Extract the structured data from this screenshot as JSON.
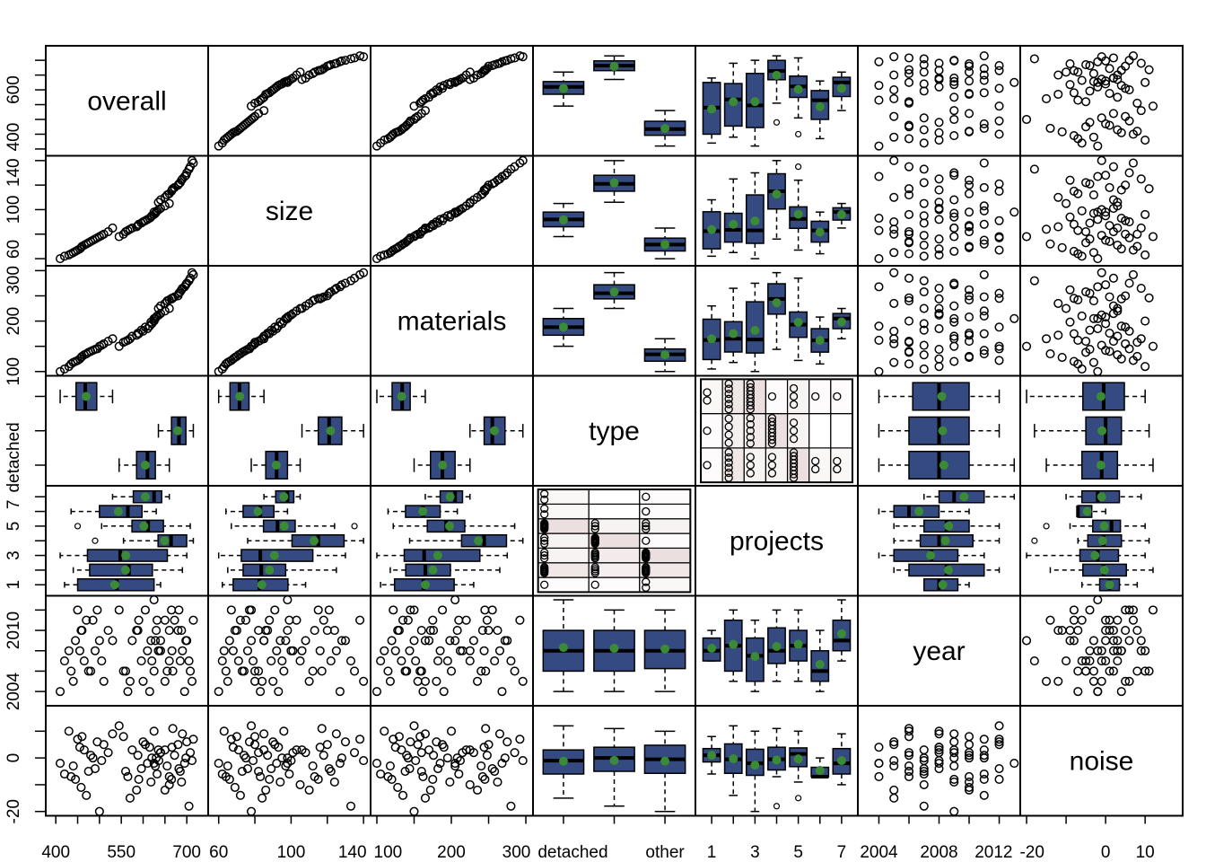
{
  "chart_data": {
    "type": "scatter",
    "kind": "pairs-matrix",
    "variables": [
      {
        "name": "overall",
        "kind": "numeric",
        "lim": [
          377,
          749
        ],
        "ticks": [
          400,
          450,
          500,
          550,
          600,
          650,
          700
        ],
        "bottom_labels": [
          {
            "at": 400,
            "text": "400"
          },
          {
            "at": 550,
            "text": "550"
          },
          {
            "at": 700,
            "text": "700"
          }
        ],
        "left_labels": [
          {
            "at": 400,
            "text": "400"
          },
          {
            "at": 600,
            "text": "600"
          }
        ]
      },
      {
        "name": "size",
        "kind": "numeric",
        "lim": [
          54.2,
          143.9
        ],
        "ticks": [
          60,
          80,
          100,
          120,
          140
        ],
        "bottom_labels": [
          {
            "at": 60,
            "text": "60"
          },
          {
            "at": 100,
            "text": "100"
          },
          {
            "at": 140,
            "text": "140"
          }
        ],
        "left_labels": [
          {
            "at": 60,
            "text": "60"
          },
          {
            "at": 100,
            "text": "100"
          },
          {
            "at": 140,
            "text": "140"
          }
        ]
      },
      {
        "name": "materials",
        "kind": "numeric",
        "lim": [
          91.6,
          309.6
        ],
        "ticks": [
          100,
          150,
          200,
          250,
          300
        ],
        "bottom_labels": [
          {
            "at": 100,
            "text": "100"
          },
          {
            "at": 200,
            "text": "200"
          },
          {
            "at": 300,
            "text": "300"
          }
        ],
        "left_labels": [
          {
            "at": 100,
            "text": "100"
          },
          {
            "at": 200,
            "text": "200"
          },
          {
            "at": 300,
            "text": "300"
          }
        ]
      },
      {
        "name": "type",
        "kind": "categorical",
        "lim": [
          0.4,
          3.6
        ],
        "levels": [
          1,
          2,
          3
        ],
        "ticks": [
          1,
          2,
          3
        ],
        "bottom_labels": [
          {
            "at": 1,
            "text": "detached"
          },
          {
            "at": 3,
            "text": "other"
          }
        ],
        "left_labels": [
          {
            "at": 1,
            "text": "detached"
          }
        ]
      },
      {
        "name": "projects",
        "kind": "categorical",
        "lim": [
          0.25,
          7.75
        ],
        "levels": [
          1,
          2,
          3,
          4,
          5,
          6,
          7
        ],
        "ticks": [
          1,
          2,
          3,
          4,
          5,
          6,
          7
        ],
        "bottom_labels": [
          {
            "at": 1,
            "text": "1"
          },
          {
            "at": 3,
            "text": "3"
          },
          {
            "at": 5,
            "text": "5"
          },
          {
            "at": 7,
            "text": "7"
          }
        ],
        "left_labels": [
          {
            "at": 1,
            "text": "1"
          },
          {
            "at": 3,
            "text": "3"
          },
          {
            "at": 5,
            "text": "5"
          },
          {
            "at": 7,
            "text": "7"
          }
        ]
      },
      {
        "name": "year",
        "kind": "numeric",
        "lim": [
          2002.6,
          2013.4
        ],
        "ticks": [
          2004,
          2006,
          2008,
          2010,
          2012
        ],
        "bottom_labels": [
          {
            "at": 2004,
            "text": "2004"
          },
          {
            "at": 2008,
            "text": "2008"
          },
          {
            "at": 2012,
            "text": "2012"
          }
        ],
        "left_labels": [
          {
            "at": 2004,
            "text": "2004"
          },
          {
            "at": 2010,
            "text": "2010"
          }
        ]
      },
      {
        "name": "noise",
        "kind": "numeric",
        "lim": [
          -21.6,
          19.5
        ],
        "ticks": [
          -20,
          -10,
          0,
          10
        ],
        "bottom_labels": [
          {
            "at": -20,
            "text": "-20"
          },
          {
            "at": 0,
            "text": "0"
          },
          {
            "at": 10,
            "text": "10"
          }
        ],
        "left_labels": [
          {
            "at": -20,
            "text": "-20"
          },
          {
            "at": 0,
            "text": "0"
          }
        ]
      }
    ],
    "observations": [
      [
        560,
        82,
        160,
        1,
        2,
        2006,
        -5
      ],
      [
        575,
        85,
        170,
        1,
        2,
        2009,
        3
      ],
      [
        590,
        88,
        175,
        1,
        2,
        2011,
        -8
      ],
      [
        600,
        90,
        180,
        1,
        2,
        2005,
        6
      ],
      [
        610,
        92,
        185,
        1,
        2,
        2008,
        -2
      ],
      [
        545,
        78,
        150,
        1,
        2,
        2012,
        12
      ],
      [
        620,
        95,
        195,
        1,
        1,
        2007,
        0
      ],
      [
        585,
        86,
        172,
        1,
        3,
        2010,
        -12
      ],
      [
        615,
        93,
        190,
        1,
        3,
        2004,
        4
      ],
      [
        628,
        97,
        205,
        1,
        3,
        2009,
        -3
      ],
      [
        555,
        80,
        158,
        1,
        4,
        2006,
        8
      ],
      [
        632,
        99,
        210,
        1,
        4,
        2011,
        -6
      ],
      [
        640,
        101,
        215,
        1,
        4,
        2008,
        2
      ],
      [
        570,
        84,
        165,
        1,
        5,
        2005,
        -15
      ],
      [
        588,
        87,
        176,
        1,
        5,
        2010,
        1
      ],
      [
        596,
        89,
        182,
        1,
        5,
        2007,
        -4
      ],
      [
        605,
        91,
        188,
        1,
        5,
        2012,
        5
      ],
      [
        618,
        94,
        198,
        1,
        5,
        2009,
        -9
      ],
      [
        625,
        96,
        200,
        1,
        5,
        2006,
        10
      ],
      [
        636,
        100,
        212,
        1,
        5,
        2008,
        -1
      ],
      [
        650,
        103,
        220,
        1,
        5,
        2011,
        3
      ],
      [
        565,
        83,
        162,
        1,
        6,
        2004,
        -7
      ],
      [
        630,
        98,
        208,
        1,
        6,
        2010,
        0
      ],
      [
        660,
        105,
        225,
        1,
        7,
        2007,
        -10
      ],
      [
        640,
        108,
        230,
        2,
        1,
        2009,
        2
      ],
      [
        655,
        112,
        240,
        2,
        2,
        2006,
        -3
      ],
      [
        680,
        120,
        250,
        2,
        2,
        2010,
        5
      ],
      [
        665,
        115,
        245,
        2,
        2,
        2012,
        -8
      ],
      [
        690,
        125,
        265,
        2,
        2,
        2008,
        9
      ],
      [
        650,
        110,
        235,
        2,
        3,
        2005,
        -12
      ],
      [
        672,
        118,
        248,
        2,
        3,
        2011,
        1
      ],
      [
        685,
        122,
        258,
        2,
        3,
        2007,
        -5
      ],
      [
        700,
        130,
        275,
        2,
        3,
        2009,
        6
      ],
      [
        695,
        127,
        268,
        2,
        3,
        2004,
        -2
      ],
      [
        635,
        106,
        225,
        2,
        4,
        2008,
        3
      ],
      [
        660,
        113,
        242,
        2,
        4,
        2010,
        -7
      ],
      [
        668,
        117,
        246,
        2,
        4,
        2006,
        11
      ],
      [
        682,
        121,
        255,
        2,
        4,
        2012,
        -4
      ],
      [
        698,
        128,
        272,
        2,
        4,
        2009,
        0
      ],
      [
        705,
        133,
        280,
        2,
        4,
        2007,
        -18
      ],
      [
        715,
        138,
        292,
        2,
        4,
        2011,
        7
      ],
      [
        712,
        140,
        296,
        2,
        4,
        2005,
        -1
      ],
      [
        666,
        116,
        244,
        2,
        5,
        2008,
        4
      ],
      [
        688,
        124,
        262,
        2,
        5,
        2010,
        -9
      ],
      [
        708,
        135,
        285,
        2,
        5,
        2006,
        2
      ],
      [
        420,
        62,
        105,
        3,
        1,
        2007,
        -6
      ],
      [
        460,
        70,
        130,
        3,
        1,
        2010,
        8
      ],
      [
        440,
        65,
        118,
        3,
        2,
        2005,
        -3
      ],
      [
        455,
        68,
        125,
        3,
        2,
        2008,
        4
      ],
      [
        470,
        72,
        135,
        3,
        2,
        2011,
        -14
      ],
      [
        480,
        74,
        140,
        3,
        2,
        2006,
        1
      ],
      [
        445,
        66,
        120,
        3,
        2,
        2009,
        -8
      ],
      [
        495,
        77,
        145,
        3,
        2,
        2012,
        6
      ],
      [
        410,
        60,
        100,
        3,
        3,
        2004,
        -2
      ],
      [
        430,
        63,
        110,
        3,
        3,
        2008,
        10
      ],
      [
        458,
        69,
        128,
        3,
        3,
        2010,
        -11
      ],
      [
        465,
        71,
        133,
        3,
        3,
        2007,
        3
      ],
      [
        475,
        73,
        138,
        3,
        3,
        2006,
        -5
      ],
      [
        485,
        75,
        142,
        3,
        3,
        2011,
        0
      ],
      [
        500,
        78,
        150,
        3,
        3,
        2009,
        -20
      ],
      [
        510,
        80,
        155,
        3,
        3,
        2005,
        5
      ],
      [
        490,
        76,
        144,
        3,
        4,
        2008,
        -4
      ],
      [
        450,
        67,
        122,
        3,
        5,
        2012,
        7
      ],
      [
        505,
        79,
        152,
        3,
        5,
        2007,
        -1
      ],
      [
        520,
        82,
        160,
        3,
        5,
        2010,
        2
      ],
      [
        435,
        64,
        115,
        3,
        6,
        2006,
        -7
      ],
      [
        530,
        85,
        165,
        3,
        7,
        2009,
        9
      ],
      [
        625,
        98,
        205,
        1,
        7,
        2013,
        -2
      ]
    ],
    "grid": false,
    "legend": "none",
    "colors": {
      "box_fill": "#344a80",
      "mean_point": "#3b8a36",
      "mosaic_shade": "#ebdfdf",
      "points": "#000000"
    }
  }
}
